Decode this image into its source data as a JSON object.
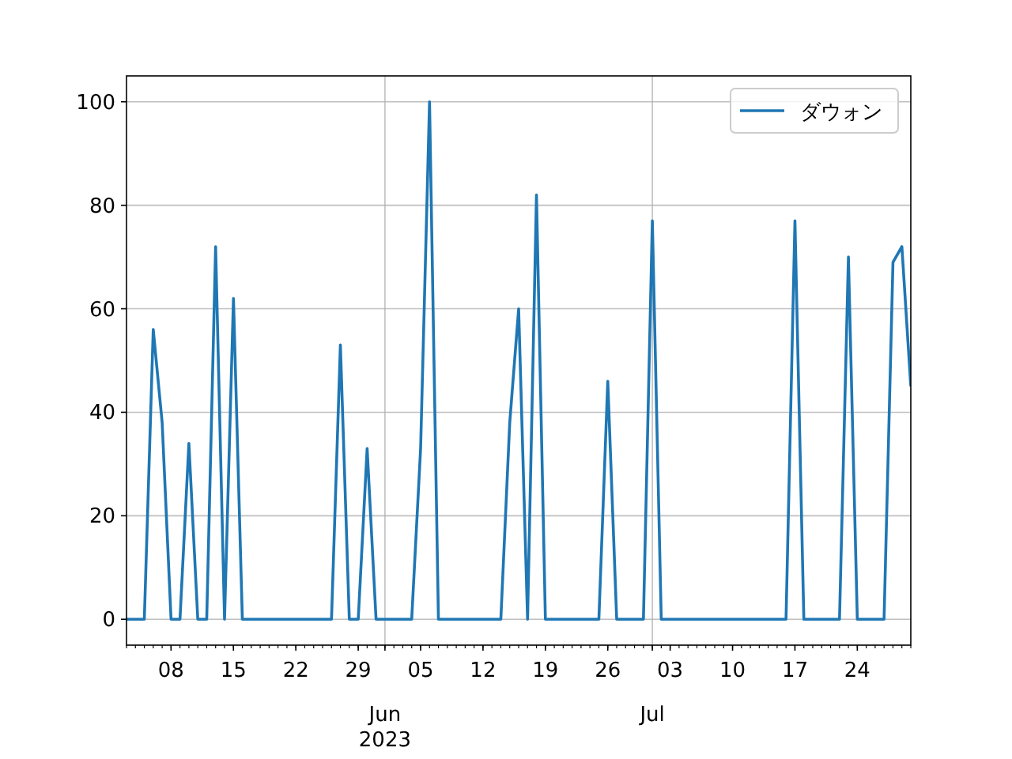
{
  "chart_data": {
    "type": "line",
    "x": [
      "2023-05-03",
      "2023-05-04",
      "2023-05-05",
      "2023-05-06",
      "2023-05-07",
      "2023-05-08",
      "2023-05-09",
      "2023-05-10",
      "2023-05-11",
      "2023-05-12",
      "2023-05-13",
      "2023-05-14",
      "2023-05-15",
      "2023-05-16",
      "2023-05-17",
      "2023-05-18",
      "2023-05-19",
      "2023-05-20",
      "2023-05-21",
      "2023-05-22",
      "2023-05-23",
      "2023-05-24",
      "2023-05-25",
      "2023-05-26",
      "2023-05-27",
      "2023-05-28",
      "2023-05-29",
      "2023-05-30",
      "2023-05-31",
      "2023-06-01",
      "2023-06-02",
      "2023-06-03",
      "2023-06-04",
      "2023-06-05",
      "2023-06-06",
      "2023-06-07",
      "2023-06-08",
      "2023-06-09",
      "2023-06-10",
      "2023-06-11",
      "2023-06-12",
      "2023-06-13",
      "2023-06-14",
      "2023-06-15",
      "2023-06-16",
      "2023-06-17",
      "2023-06-18",
      "2023-06-19",
      "2023-06-20",
      "2023-06-21",
      "2023-06-22",
      "2023-06-23",
      "2023-06-24",
      "2023-06-25",
      "2023-06-26",
      "2023-06-27",
      "2023-06-28",
      "2023-06-29",
      "2023-06-30",
      "2023-07-01",
      "2023-07-02",
      "2023-07-03",
      "2023-07-04",
      "2023-07-05",
      "2023-07-06",
      "2023-07-07",
      "2023-07-08",
      "2023-07-09",
      "2023-07-10",
      "2023-07-11",
      "2023-07-12",
      "2023-07-13",
      "2023-07-14",
      "2023-07-15",
      "2023-07-16",
      "2023-07-17",
      "2023-07-18",
      "2023-07-19",
      "2023-07-20",
      "2023-07-21",
      "2023-07-22",
      "2023-07-23",
      "2023-07-24",
      "2023-07-25",
      "2023-07-26",
      "2023-07-27",
      "2023-07-28",
      "2023-07-29",
      "2023-07-30"
    ],
    "series": [
      {
        "name": "ダウォン",
        "color": "#1f77b4",
        "values": [
          0,
          0,
          0,
          56,
          38,
          0,
          0,
          34,
          0,
          0,
          72,
          0,
          62,
          0,
          0,
          0,
          0,
          0,
          0,
          0,
          0,
          0,
          0,
          0,
          53,
          0,
          0,
          33,
          0,
          0,
          0,
          0,
          0,
          33,
          100,
          0,
          0,
          0,
          0,
          0,
          0,
          0,
          0,
          38,
          60,
          0,
          82,
          0,
          0,
          0,
          0,
          0,
          0,
          0,
          46,
          0,
          0,
          0,
          0,
          77,
          0,
          0,
          0,
          0,
          0,
          0,
          0,
          0,
          0,
          0,
          0,
          0,
          0,
          0,
          0,
          77,
          0,
          0,
          0,
          0,
          0,
          70,
          0,
          0,
          0,
          0,
          69,
          72,
          45
        ]
      }
    ],
    "xlim": [
      "2023-05-03",
      "2023-07-30"
    ],
    "xticks": [
      {
        "value": "2023-05-08",
        "label": "08"
      },
      {
        "value": "2023-05-15",
        "label": "15"
      },
      {
        "value": "2023-05-22",
        "label": "22"
      },
      {
        "value": "2023-05-29",
        "label": "29"
      },
      {
        "value": "2023-06-01",
        "label": null
      },
      {
        "value": "2023-06-05",
        "label": "05"
      },
      {
        "value": "2023-06-12",
        "label": "12"
      },
      {
        "value": "2023-06-19",
        "label": "19"
      },
      {
        "value": "2023-06-26",
        "label": "26"
      },
      {
        "value": "2023-07-01",
        "label": null
      },
      {
        "value": "2023-07-03",
        "label": "03"
      },
      {
        "value": "2023-07-10",
        "label": "10"
      },
      {
        "value": "2023-07-17",
        "label": "17"
      },
      {
        "value": "2023-07-24",
        "label": "24"
      }
    ],
    "ylim": [
      -5,
      105
    ],
    "yticks": [
      0,
      20,
      40,
      60,
      80,
      100
    ],
    "annotations": [
      "Jun\n2023",
      "Jul"
    ],
    "grid": true,
    "legend": "top right",
    "line_style": "solid"
  }
}
